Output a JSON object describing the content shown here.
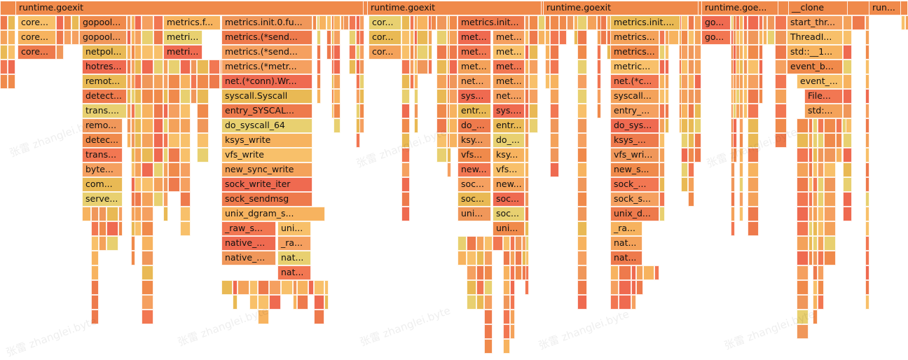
{
  "palette": [
    "#f08a4b",
    "#ee7a4c",
    "#f4a25a",
    "#f7b35f",
    "#e9b954",
    "#f27752",
    "#f0975a",
    "#ef6a50",
    "#f8c06a",
    "#e8d070",
    "#f5a060"
  ],
  "flamegraph": {
    "watermark_text": "张雷 zhanglei.byte",
    "labeled_frames": [
      {
        "t": "runtime.goexit"
      },
      {
        "t": "runtime.goexit"
      },
      {
        "t": "runtime.goexit"
      },
      {
        "t": "runtime.goe..."
      },
      {
        "t": "__clone"
      },
      {
        "t": "run..."
      },
      {
        "t": "core..."
      },
      {
        "t": "gopool..."
      },
      {
        "t": "metrics.f..."
      },
      {
        "t": "metrics.init.0.fu..."
      },
      {
        "t": "cor..."
      },
      {
        "t": "metrics.init..."
      },
      {
        "t": "metrics.init...."
      },
      {
        "t": "go..."
      },
      {
        "t": "start_thr..."
      },
      {
        "t": "core..."
      },
      {
        "t": "gopool..."
      },
      {
        "t": "metri..."
      },
      {
        "t": "metrics.(*send..."
      },
      {
        "t": "cor..."
      },
      {
        "t": "met..."
      },
      {
        "t": "met..."
      },
      {
        "t": "metrics..."
      },
      {
        "t": "go..."
      },
      {
        "t": "ThreadI..."
      },
      {
        "t": "core..."
      },
      {
        "t": "netpol..."
      },
      {
        "t": "metri..."
      },
      {
        "t": "metrics.(*send..."
      },
      {
        "t": "cor..."
      },
      {
        "t": "met..."
      },
      {
        "t": "met..."
      },
      {
        "t": "metrics..."
      },
      {
        "t": "std::__1..."
      },
      {
        "t": "hotres..."
      },
      {
        "t": "metrics.(*metr..."
      },
      {
        "t": "met..."
      },
      {
        "t": "met..."
      },
      {
        "t": "metric..."
      },
      {
        "t": "event_b..."
      },
      {
        "t": "remot..."
      },
      {
        "t": "net.(*conn).Wr..."
      },
      {
        "t": "net..."
      },
      {
        "t": "met..."
      },
      {
        "t": "net.(*c..."
      },
      {
        "t": "event_..."
      },
      {
        "t": "detect..."
      },
      {
        "t": "syscall.Syscall"
      },
      {
        "t": "sys..."
      },
      {
        "t": "net...."
      },
      {
        "t": "syscall..."
      },
      {
        "t": "File..."
      },
      {
        "t": "trans...."
      },
      {
        "t": "entry_SYSCAL..."
      },
      {
        "t": "entr..."
      },
      {
        "t": "sys...."
      },
      {
        "t": "entry_..."
      },
      {
        "t": "std:..."
      },
      {
        "t": "remo..."
      },
      {
        "t": "do_syscall_64"
      },
      {
        "t": "do_..."
      },
      {
        "t": "entr..."
      },
      {
        "t": "do_sys..."
      },
      {
        "t": "detec..."
      },
      {
        "t": "ksys_write"
      },
      {
        "t": "ksy..."
      },
      {
        "t": "do_..."
      },
      {
        "t": "ksys_..."
      },
      {
        "t": "trans..."
      },
      {
        "t": "vfs_write"
      },
      {
        "t": "vfs..."
      },
      {
        "t": "ksy..."
      },
      {
        "t": "vfs_wri..."
      },
      {
        "t": "byte..."
      },
      {
        "t": "new_sync_write"
      },
      {
        "t": "new..."
      },
      {
        "t": "vfs..."
      },
      {
        "t": "new_s..."
      },
      {
        "t": "com..."
      },
      {
        "t": "sock_write_iter"
      },
      {
        "t": "soc..."
      },
      {
        "t": "new..."
      },
      {
        "t": "sock_..."
      },
      {
        "t": "serve..."
      },
      {
        "t": "sock_sendmsg"
      },
      {
        "t": "soc..."
      },
      {
        "t": "soc..."
      },
      {
        "t": "sock_s..."
      },
      {
        "t": "unix_dgram_s..."
      },
      {
        "t": "uni..."
      },
      {
        "t": "soc..."
      },
      {
        "t": "unix_d..."
      },
      {
        "t": "_raw_s..."
      },
      {
        "t": "uni..."
      },
      {
        "t": "uni..."
      },
      {
        "t": "_ra..."
      },
      {
        "t": "native_..."
      },
      {
        "t": "_ra..."
      },
      {
        "t": "nat..."
      },
      {
        "t": "native_..."
      },
      {
        "t": "nat..."
      },
      {
        "t": "nat..."
      },
      {
        "t": "nat..."
      }
    ]
  }
}
